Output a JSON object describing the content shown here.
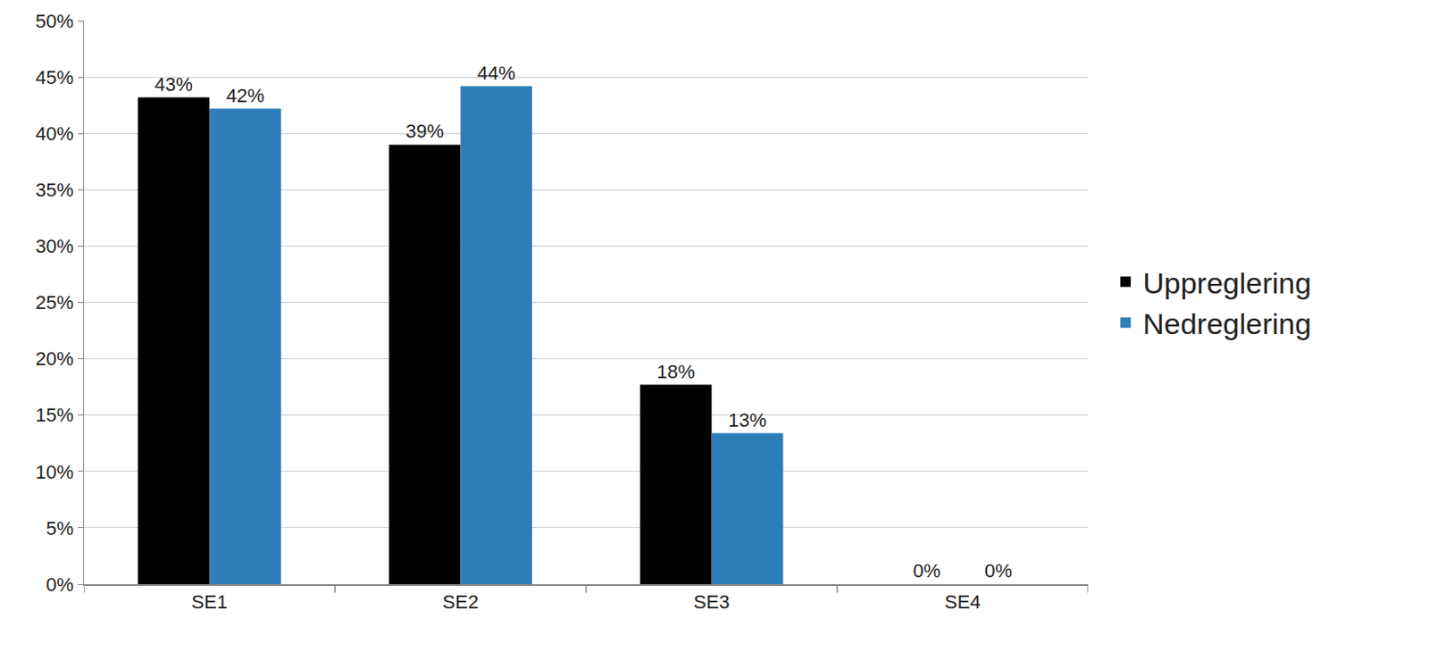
{
  "chart_data": {
    "type": "bar",
    "categories": [
      "SE1",
      "SE2",
      "SE3",
      "SE4"
    ],
    "series": [
      {
        "name": "Uppreglering",
        "color": "#000000",
        "values": [
          43.2,
          39.0,
          17.7,
          0
        ],
        "value_labels": [
          "43%",
          "39%",
          "18%",
          "0%"
        ]
      },
      {
        "name": "Nedreglering",
        "color": "#2e7eb8",
        "values": [
          42.2,
          44.2,
          13.4,
          0
        ],
        "value_labels": [
          "42%",
          "44%",
          "13%",
          "0%"
        ]
      }
    ],
    "ylim": [
      0,
      50
    ],
    "yticks": [
      {
        "value": 0,
        "label": "0%"
      },
      {
        "value": 5,
        "label": "5%"
      },
      {
        "value": 10,
        "label": "10%"
      },
      {
        "value": 15,
        "label": "15%"
      },
      {
        "value": 20,
        "label": "20%"
      },
      {
        "value": 25,
        "label": "25%"
      },
      {
        "value": 30,
        "label": "30%"
      },
      {
        "value": 35,
        "label": "35%"
      },
      {
        "value": 40,
        "label": "40%"
      },
      {
        "value": 45,
        "label": "45%"
      },
      {
        "value": 50,
        "label": "50%"
      }
    ],
    "grid": true,
    "legend": "right",
    "data_labels": true
  }
}
